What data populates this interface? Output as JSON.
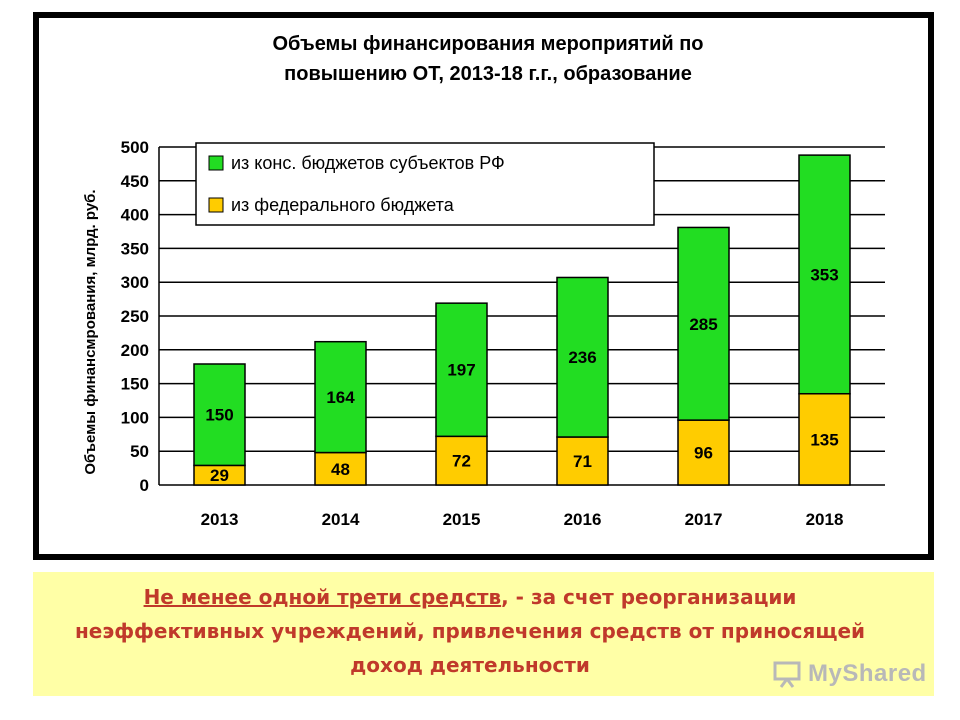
{
  "chart_data": {
    "type": "bar",
    "stacked": true,
    "title_lines": [
      "Объемы финансирования мероприятий по",
      "повышению ОТ, 2013-18 г.г., образование"
    ],
    "ylabel": "Объемы финансмрования, млрд. руб.",
    "xlabel": "",
    "ylim": [
      0,
      500
    ],
    "yticks": [
      0,
      50,
      100,
      150,
      200,
      250,
      300,
      350,
      400,
      450,
      500
    ],
    "categories": [
      "2013",
      "2014",
      "2015",
      "2016",
      "2017",
      "2018"
    ],
    "grid": true,
    "legend_position": "top-left",
    "series": [
      {
        "name": "из федерального бюджета",
        "color": "#ffcc00",
        "values": [
          29,
          48,
          72,
          71,
          96,
          135
        ]
      },
      {
        "name": "из конс. бюджетов субъектов РФ",
        "color": "#22dd22",
        "values": [
          150,
          164,
          197,
          236,
          285,
          353
        ]
      }
    ],
    "legend_order": [
      1,
      0
    ]
  },
  "caption": {
    "underlined": "Не менее одной трети средств",
    "rest": ", - за счет реорганизации неэффективных учреждений, привлечения средств от приносящей доход деятельности"
  },
  "watermark": {
    "text": "MyShared",
    "icon": "presentation-board-icon"
  }
}
